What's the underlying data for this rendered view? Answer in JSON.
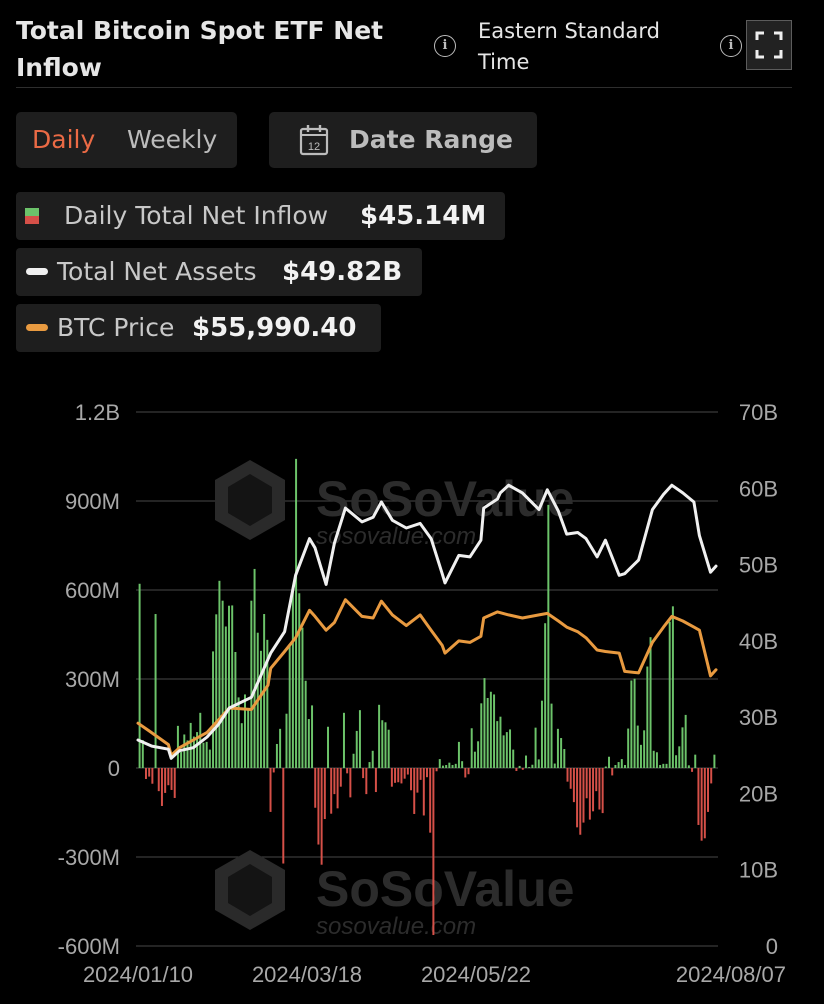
{
  "header": {
    "title": "Total Bitcoin Spot ETF Net Inflow",
    "timezone": "Eastern Standard Time"
  },
  "controls": {
    "daily": "Daily",
    "weekly": "Weekly",
    "date_range": "Date Range",
    "calendar_day": "12"
  },
  "legend": {
    "inflow_label": "Daily Total Net Inflow",
    "inflow_value": "$45.14M",
    "assets_label": "Total Net Assets",
    "assets_value": "$49.82B",
    "price_label": "BTC Price",
    "price_value": "$55,990.40"
  },
  "watermark": {
    "brand": "SoSoValue",
    "url": "sosovalue.com"
  },
  "colors": {
    "positive": "#6cc36a",
    "negative": "#d65048",
    "assets": "#f0f0f0",
    "price": "#e89a40",
    "active_tab": "#ea6a45",
    "grid": "#3a3a3a",
    "axis_text": "#a8a8a8"
  },
  "chart_data": {
    "type": "bar",
    "title": "Total Bitcoin Spot ETF Net Inflow",
    "x_start": "2024-01-11",
    "x_end": "2024-08-07",
    "x_ticks": [
      "2024/01/10",
      "2024/03/18",
      "2024/05/22",
      "2024/08/07"
    ],
    "y_left_ticks": [
      "1.2B",
      "900M",
      "600M",
      "300M",
      "0",
      "-300M",
      "-600M"
    ],
    "y_right_ticks": [
      "70B",
      "60B",
      "50B",
      "40B",
      "30B",
      "20B",
      "10B",
      "0"
    ],
    "y_left_range": [
      -600000000,
      1200000000
    ],
    "y_right_range": [
      0,
      70000000000
    ],
    "grid": true,
    "series": [
      {
        "name": "Daily Total Net Inflow",
        "axis": "left",
        "type": "bar",
        "unit": "USD millions",
        "values": [
          621,
          94,
          -37,
          -29,
          -53,
          519,
          -78,
          -128,
          -84,
          -58,
          -74,
          -101,
          142,
          54,
          113,
          93,
          152,
          106,
          121,
          186,
          85,
          88,
          62,
          393,
          518,
          631,
          564,
          477,
          547,
          548,
          391,
          238,
          151,
          248,
          201,
          564,
          671,
          456,
          395,
          519,
          432,
          -148,
          -15,
          81,
          132,
          -322,
          183,
          418,
          602,
          1042,
          589,
          473,
          294,
          165,
          211,
          -134,
          -258,
          -326,
          -172,
          139,
          -154,
          -88,
          -136,
          -63,
          186,
          -18,
          -99,
          48,
          125,
          195,
          -34,
          -88,
          20,
          58,
          -81,
          213,
          161,
          154,
          129,
          -63,
          -50,
          -48,
          -52,
          -36,
          -22,
          -75,
          -155,
          -83,
          -40,
          -160,
          -31,
          -218,
          -563,
          -11,
          30,
          8,
          10,
          18,
          10,
          14,
          88,
          23,
          -32,
          -21,
          134,
          55,
          90,
          218,
          303,
          236,
          257,
          248,
          158,
          173,
          110,
          121,
          130,
          62,
          -10,
          7,
          -6,
          42,
          3,
          11,
          136,
          29,
          227,
          488,
          887,
          217,
          15,
          132,
          101,
          64,
          -46,
          -70,
          -115,
          -200,
          -225,
          -184,
          -102,
          -174,
          -146,
          -78,
          -140,
          -152,
          5,
          38,
          -25,
          10,
          20,
          30,
          10,
          133,
          295,
          301,
          143,
          78,
          127,
          342,
          441,
          58,
          53,
          10,
          14,
          14,
          493,
          545,
          43,
          73,
          137,
          179,
          9,
          -13,
          45,
          -192,
          -245,
          -237,
          -148,
          -52,
          45
        ]
      },
      {
        "name": "Total Net Assets",
        "axis": "right",
        "type": "line",
        "unit": "USD billions",
        "points": [
          [
            "2024-01-11",
            27.0
          ],
          [
            "2024-01-16",
            26.2
          ],
          [
            "2024-01-22",
            25.8
          ],
          [
            "2024-01-23",
            24.6
          ],
          [
            "2024-01-26",
            25.6
          ],
          [
            "2024-01-31",
            26.0
          ],
          [
            "2024-02-05",
            27.4
          ],
          [
            "2024-02-09",
            29.0
          ],
          [
            "2024-02-13",
            31.2
          ],
          [
            "2024-02-21",
            32.6
          ],
          [
            "2024-02-27",
            37.6
          ],
          [
            "2024-02-28",
            38.4
          ],
          [
            "2024-03-04",
            41.2
          ],
          [
            "2024-03-08",
            48.6
          ],
          [
            "2024-03-13",
            53.4
          ],
          [
            "2024-03-15",
            52.2
          ],
          [
            "2024-03-19",
            47.4
          ],
          [
            "2024-03-22",
            52.8
          ],
          [
            "2024-03-26",
            57.4
          ],
          [
            "2024-04-01",
            55.6
          ],
          [
            "2024-04-05",
            56.2
          ],
          [
            "2024-04-08",
            58.2
          ],
          [
            "2024-04-12",
            55.8
          ],
          [
            "2024-04-17",
            54.8
          ],
          [
            "2024-04-22",
            55.4
          ],
          [
            "2024-04-26",
            53.4
          ],
          [
            "2024-04-30",
            48.8
          ],
          [
            "2024-05-01",
            47.6
          ],
          [
            "2024-05-06",
            51.2
          ],
          [
            "2024-05-10",
            51.0
          ],
          [
            "2024-05-14",
            53.2
          ],
          [
            "2024-05-15",
            57.4
          ],
          [
            "2024-05-20",
            58.6
          ],
          [
            "2024-05-21",
            59.4
          ],
          [
            "2024-05-24",
            60.4
          ],
          [
            "2024-05-29",
            59.4
          ],
          [
            "2024-06-04",
            57.2
          ],
          [
            "2024-06-07",
            59.8
          ],
          [
            "2024-06-11",
            57.0
          ],
          [
            "2024-06-14",
            54.0
          ],
          [
            "2024-06-18",
            54.2
          ],
          [
            "2024-06-21",
            53.4
          ],
          [
            "2024-06-25",
            51.0
          ],
          [
            "2024-06-28",
            53.2
          ],
          [
            "2024-07-03",
            48.6
          ],
          [
            "2024-07-05",
            48.8
          ],
          [
            "2024-07-10",
            50.6
          ],
          [
            "2024-07-15",
            57.2
          ],
          [
            "2024-07-19",
            59.2
          ],
          [
            "2024-07-22",
            60.4
          ],
          [
            "2024-07-26",
            59.4
          ],
          [
            "2024-07-30",
            58.2
          ],
          [
            "2024-08-01",
            53.8
          ],
          [
            "2024-08-05",
            49.0
          ],
          [
            "2024-08-07",
            49.8
          ]
        ]
      },
      {
        "name": "BTC Price",
        "axis": "right",
        "type": "line",
        "unit": "price (right axis scale)",
        "points": [
          [
            "2024-01-11",
            29.2
          ],
          [
            "2024-01-15",
            28.2
          ],
          [
            "2024-01-22",
            26.4
          ],
          [
            "2024-01-23",
            25.0
          ],
          [
            "2024-01-26",
            26.0
          ],
          [
            "2024-01-31",
            27.0
          ],
          [
            "2024-02-05",
            28.0
          ],
          [
            "2024-02-09",
            29.6
          ],
          [
            "2024-02-13",
            31.2
          ],
          [
            "2024-02-21",
            31.0
          ],
          [
            "2024-02-27",
            34.2
          ],
          [
            "2024-02-28",
            36.4
          ],
          [
            "2024-03-04",
            38.6
          ],
          [
            "2024-03-08",
            40.4
          ],
          [
            "2024-03-13",
            44.0
          ],
          [
            "2024-03-15",
            43.2
          ],
          [
            "2024-03-19",
            41.4
          ],
          [
            "2024-03-22",
            42.4
          ],
          [
            "2024-03-26",
            45.4
          ],
          [
            "2024-04-01",
            43.2
          ],
          [
            "2024-04-05",
            43.0
          ],
          [
            "2024-04-08",
            45.2
          ],
          [
            "2024-04-12",
            43.4
          ],
          [
            "2024-04-17",
            42.0
          ],
          [
            "2024-04-22",
            43.4
          ],
          [
            "2024-04-26",
            41.4
          ],
          [
            "2024-04-30",
            39.4
          ],
          [
            "2024-05-01",
            38.4
          ],
          [
            "2024-05-06",
            40.0
          ],
          [
            "2024-05-10",
            39.8
          ],
          [
            "2024-05-14",
            40.6
          ],
          [
            "2024-05-15",
            43.0
          ],
          [
            "2024-05-20",
            43.8
          ],
          [
            "2024-05-24",
            43.4
          ],
          [
            "2024-05-29",
            43.0
          ],
          [
            "2024-06-04",
            43.4
          ],
          [
            "2024-06-07",
            43.6
          ],
          [
            "2024-06-11",
            42.6
          ],
          [
            "2024-06-14",
            41.8
          ],
          [
            "2024-06-18",
            41.2
          ],
          [
            "2024-06-21",
            40.4
          ],
          [
            "2024-06-25",
            38.8
          ],
          [
            "2024-06-28",
            38.6
          ],
          [
            "2024-07-03",
            38.4
          ],
          [
            "2024-07-05",
            36.0
          ],
          [
            "2024-07-10",
            35.8
          ],
          [
            "2024-07-15",
            39.8
          ],
          [
            "2024-07-19",
            41.8
          ],
          [
            "2024-07-22",
            43.2
          ],
          [
            "2024-07-26",
            42.6
          ],
          [
            "2024-07-30",
            41.8
          ],
          [
            "2024-08-01",
            41.4
          ],
          [
            "2024-08-05",
            35.4
          ],
          [
            "2024-08-07",
            36.2
          ]
        ]
      }
    ]
  }
}
